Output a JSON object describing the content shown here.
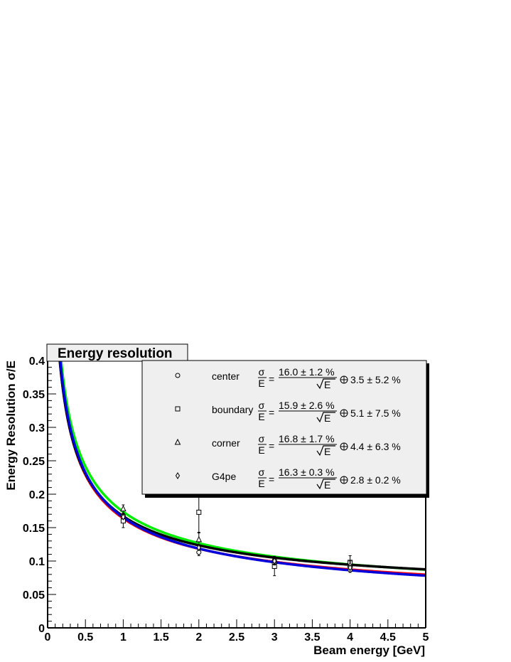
{
  "chart_data": {
    "type": "scatter",
    "title": "Energy resolution",
    "xlabel": "Beam energy [GeV]",
    "ylabel": "Energy Resolution σ/E",
    "xlim": [
      0,
      5
    ],
    "ylim": [
      0,
      0.4
    ],
    "x_ticks": [
      "0",
      "0.5",
      "1",
      "1.5",
      "2",
      "2.5",
      "3",
      "3.5",
      "4",
      "4.5",
      "5"
    ],
    "y_ticks": [
      "0",
      "0.05",
      "0.1",
      "0.15",
      "0.2",
      "0.25",
      "0.3",
      "0.35",
      "0.4"
    ],
    "grid": false,
    "legend_placement": "top-right",
    "series": [
      {
        "name": "center",
        "marker": "circle",
        "fit": {
          "sigma": "σ",
          "energy": "E",
          "stochastic": "16.0 ± 1.2 %",
          "constant": "3.5 ± 5.2 %"
        },
        "points": [
          {
            "x": 1,
            "y": 0.168,
            "err": 0.008
          },
          {
            "x": 2,
            "y": 0.113,
            "err": 0.005
          },
          {
            "x": 3,
            "y": 0.101,
            "err": 0.006
          },
          {
            "x": 4,
            "y": 0.087,
            "err": 0.004
          }
        ]
      },
      {
        "name": "boundary",
        "marker": "square",
        "fit": {
          "sigma": "σ",
          "energy": "E",
          "stochastic": "15.9 ± 2.6 %",
          "constant": "5.1 ± 7.5 %"
        },
        "points": [
          {
            "x": 1,
            "y": 0.16,
            "err": 0.01
          },
          {
            "x": 2,
            "y": 0.173,
            "err": 0.03
          },
          {
            "x": 3,
            "y": 0.092,
            "err": 0.014
          },
          {
            "x": 4,
            "y": 0.098,
            "err": 0.01
          }
        ]
      },
      {
        "name": "corner",
        "marker": "triangle",
        "fit": {
          "sigma": "σ",
          "energy": "E",
          "stochastic": "16.8 ± 1.7 %",
          "constant": "4.4 ± 6.3 %"
        },
        "points": [
          {
            "x": 1,
            "y": 0.178,
            "err": 0.006
          },
          {
            "x": 2,
            "y": 0.132,
            "err": 0.01
          },
          {
            "x": 3,
            "y": 0.1,
            "err": 0.006
          },
          {
            "x": 4,
            "y": 0.094,
            "err": 0.006
          }
        ]
      },
      {
        "name": "G4pe",
        "marker": "diamond",
        "fit": {
          "sigma": "σ",
          "energy": "E",
          "stochastic": "16.3 ± 0.3 %",
          "constant": "2.8 ± 0.2 %"
        },
        "points": [
          {
            "x": 1,
            "y": 0.166,
            "err": 0.003
          },
          {
            "x": 2,
            "y": 0.12,
            "err": 0.003
          },
          {
            "x": 3,
            "y": 0.1,
            "err": 0.003
          },
          {
            "x": 4,
            "y": 0.09,
            "err": 0.003
          }
        ]
      }
    ],
    "fit_curves": [
      {
        "color": "#ff0000",
        "stochastic": 0.16,
        "constant": 0.035
      },
      {
        "color": "#00ee00",
        "stochastic": 0.168,
        "constant": 0.044
      },
      {
        "color": "#000000",
        "stochastic": 0.159,
        "constant": 0.051
      },
      {
        "color": "#0000dd",
        "stochastic": 0.163,
        "constant": 0.028
      }
    ]
  }
}
